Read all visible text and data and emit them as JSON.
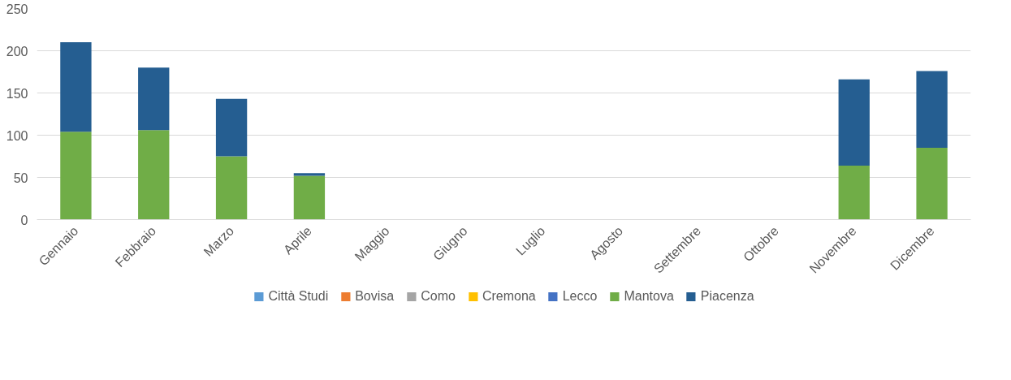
{
  "chart_data": {
    "type": "bar",
    "stacked": true,
    "categories": [
      "Gennaio",
      "Febbraio",
      "Marzo",
      "Aprile",
      "Maggio",
      "Giugno",
      "Luglio",
      "Agosto",
      "Settembre",
      "Ottobre",
      "Novembre",
      "Dicembre"
    ],
    "series": [
      {
        "name": "Città Studi",
        "color": "#5b9bd5",
        "values": [
          null,
          null,
          null,
          null,
          null,
          null,
          null,
          null,
          null,
          null,
          null,
          null
        ]
      },
      {
        "name": "Bovisa",
        "color": "#ed7d31",
        "values": [
          null,
          null,
          null,
          null,
          null,
          null,
          null,
          null,
          null,
          null,
          null,
          null
        ]
      },
      {
        "name": "Como",
        "color": "#a5a5a5",
        "values": [
          null,
          null,
          null,
          null,
          null,
          null,
          null,
          null,
          null,
          null,
          null,
          null
        ]
      },
      {
        "name": "Cremona",
        "color": "#ffc000",
        "values": [
          null,
          null,
          null,
          null,
          null,
          null,
          null,
          null,
          null,
          null,
          null,
          null
        ]
      },
      {
        "name": "Lecco",
        "color": "#4472c4",
        "values": [
          null,
          null,
          null,
          null,
          null,
          null,
          null,
          null,
          null,
          null,
          null,
          null
        ]
      },
      {
        "name": "Mantova",
        "color": "#70ad47",
        "values": [
          104,
          106,
          75,
          52,
          null,
          null,
          null,
          null,
          null,
          null,
          64,
          85
        ]
      },
      {
        "name": "Piacenza",
        "color": "#255e91",
        "values": [
          106,
          74,
          68,
          3,
          null,
          null,
          null,
          null,
          null,
          null,
          102,
          91
        ]
      }
    ],
    "ylim": [
      0,
      250
    ],
    "yticks": [
      0,
      50,
      100,
      150,
      200,
      250
    ],
    "grid": "y",
    "legend": "bottom"
  }
}
